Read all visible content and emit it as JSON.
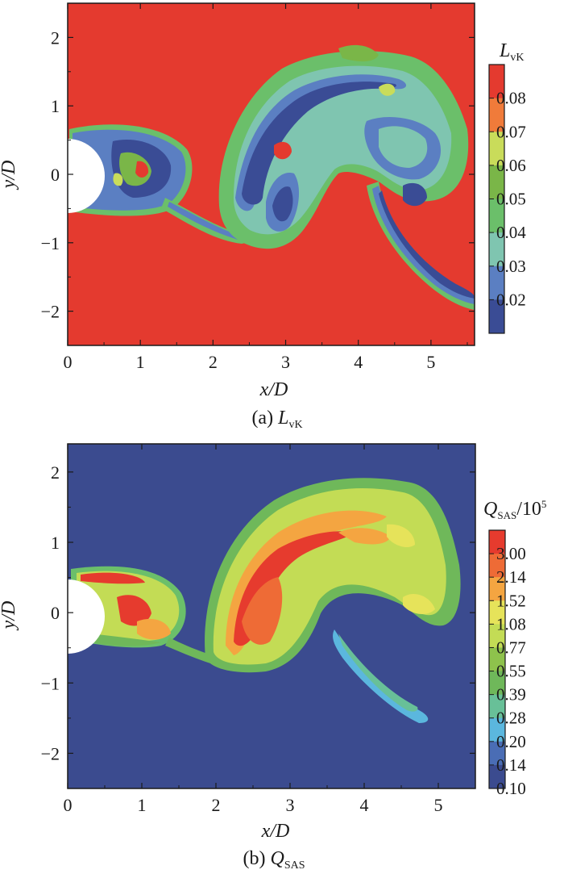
{
  "chart_data": [
    {
      "type": "heatmap",
      "xlabel": "x/D",
      "ylabel": "y/D",
      "xlim": [
        0,
        5.6
      ],
      "ylim": [
        -2.5,
        2.5
      ],
      "xticks": [
        "0",
        "1",
        "2",
        "3",
        "4",
        "5"
      ],
      "yticks": [
        "2",
        "1",
        "0",
        "−1",
        "−2"
      ],
      "caption_prefix": "(a) ",
      "caption_var": "L",
      "caption_sub": "vK",
      "colorbar_title": "L",
      "colorbar_title_sub": "vK",
      "colorbar_levels": [
        "0.08",
        "0.07",
        "0.06",
        "0.05",
        "0.04",
        "0.03",
        "0.02"
      ],
      "colorbar_colors": [
        "#e43a2f",
        "#f07b3a",
        "#c9dc5a",
        "#7ab648",
        "#6bbf6a",
        "#7fc5b0",
        "#5b7fc2",
        "#3a4c95"
      ],
      "background_color": "#e43a2f"
    },
    {
      "type": "heatmap",
      "xlabel": "x/D",
      "ylabel": "y/D",
      "xlim": [
        0,
        5.5
      ],
      "ylim": [
        -2.5,
        2.4
      ],
      "xticks": [
        "0",
        "1",
        "2",
        "3",
        "4",
        "5"
      ],
      "yticks": [
        "2",
        "1",
        "0",
        "−1",
        "−2"
      ],
      "caption_prefix": "(b) ",
      "caption_var": "Q",
      "caption_sub": "SAS",
      "colorbar_title": "Q",
      "colorbar_title_sub": "SAS",
      "colorbar_title_suffix": "/10",
      "colorbar_title_sup": "5",
      "colorbar_levels": [
        "3.00",
        "2.14",
        "1.52",
        "1.08",
        "0.77",
        "0.55",
        "0.39",
        "0.28",
        "0.20",
        "0.14",
        "0.10"
      ],
      "colorbar_colors": [
        "#e63b2e",
        "#ee6b36",
        "#f4a541",
        "#e6e35a",
        "#c3dc55",
        "#8ec24c",
        "#6fb85a",
        "#68c098",
        "#5bb7de",
        "#4a6db5",
        "#3b4b8f"
      ],
      "background_color": "#3b4b8f"
    }
  ]
}
